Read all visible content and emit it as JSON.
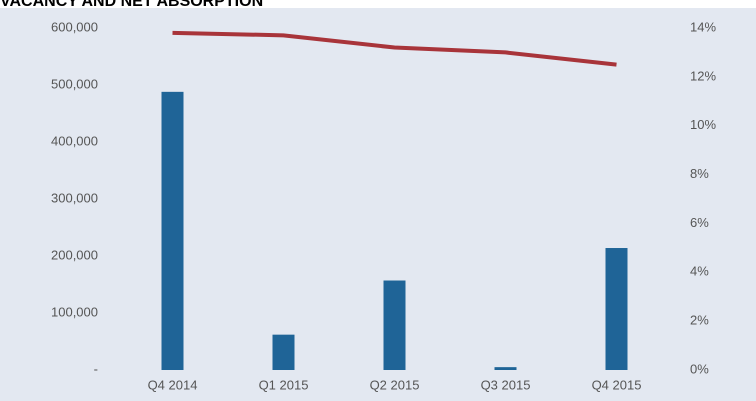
{
  "chart_data": {
    "type": "bar_line",
    "title": "VACANCY AND NET ABSORPTION",
    "categories": [
      "Q4 2014",
      "Q1 2015",
      "Q2 2015",
      "Q3 2015",
      "Q4 2015"
    ],
    "series": [
      {
        "type": "bar",
        "color": "#1f6497",
        "values": [
          488000,
          62000,
          157000,
          5000,
          214000
        ]
      },
      {
        "type": "line",
        "axis": "y2",
        "color": "#a8343a",
        "values": [
          13.8,
          13.7,
          13.2,
          13.0,
          12.5
        ]
      }
    ],
    "ylim": [
      0,
      600000
    ],
    "yticks": [
      {
        "value": 0,
        "label": "-"
      },
      {
        "value": 100000,
        "label": "100,000"
      },
      {
        "value": 200000,
        "label": "200,000"
      },
      {
        "value": 300000,
        "label": "300,000"
      },
      {
        "value": 400000,
        "label": "400,000"
      },
      {
        "value": 500000,
        "label": "500,000"
      },
      {
        "value": 600000,
        "label": "600,000"
      }
    ],
    "y2lim": [
      0,
      14
    ],
    "y2ticks": [
      {
        "value": 0,
        "label": "0%"
      },
      {
        "value": 2,
        "label": "2%"
      },
      {
        "value": 4,
        "label": "4%"
      },
      {
        "value": 6,
        "label": "6%"
      },
      {
        "value": 8,
        "label": "8%"
      },
      {
        "value": 10,
        "label": "10%"
      },
      {
        "value": 12,
        "label": "12%"
      },
      {
        "value": 14,
        "label": "14%"
      }
    ],
    "grid": false
  }
}
